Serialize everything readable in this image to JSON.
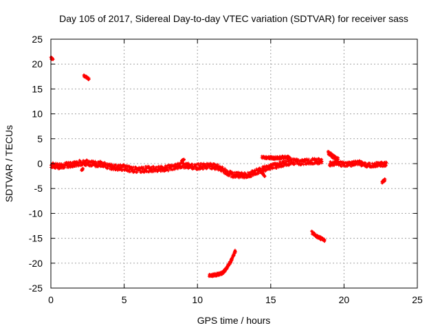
{
  "chart_data": {
    "type": "scatter",
    "title": "Day 105 of 2017, Sidereal Day-to-day VTEC variation (SDTVAR) for receiver sass",
    "xlabel": "GPS time / hours",
    "ylabel": "SDTVAR / TECUs",
    "xlim": [
      0,
      25
    ],
    "ylim": [
      -25,
      25
    ],
    "xticks": [
      0,
      5,
      10,
      15,
      20,
      25
    ],
    "yticks": [
      -25,
      -20,
      -15,
      -10,
      -5,
      0,
      5,
      10,
      15,
      20,
      25
    ],
    "grid": true,
    "point_color": "#ff0000",
    "series": [
      {
        "name": "main-band-1",
        "band": 1.2,
        "points": [
          [
            0,
            -0.3
          ],
          [
            0.5,
            -0.5
          ],
          [
            1,
            -0.3
          ],
          [
            1.5,
            -0.2
          ],
          [
            2,
            0.2
          ],
          [
            2.5,
            0.2
          ],
          [
            3,
            -0.1
          ],
          [
            3.5,
            -0.1
          ],
          [
            4,
            -0.6
          ],
          [
            4.5,
            -0.8
          ],
          [
            5,
            -0.8
          ],
          [
            5.5,
            -1.2
          ],
          [
            6,
            -1.3
          ],
          [
            6.5,
            -1.1
          ],
          [
            7,
            -1.1
          ],
          [
            7.5,
            -1.1
          ],
          [
            8,
            -0.9
          ],
          [
            8.5,
            -0.6
          ],
          [
            9,
            -0.3
          ],
          [
            9.5,
            -0.5
          ],
          [
            10,
            -0.6
          ],
          [
            10.5,
            -0.5
          ],
          [
            11,
            -0.5
          ],
          [
            11.5,
            -0.8
          ],
          [
            12,
            -1.8
          ],
          [
            12.5,
            -2.3
          ],
          [
            13,
            -2.3
          ],
          [
            13.5,
            -2.3
          ],
          [
            14,
            -1.6
          ],
          [
            14.5,
            -1.1
          ],
          [
            15,
            -0.6
          ],
          [
            15.5,
            -0.3
          ],
          [
            16,
            0.1
          ],
          [
            16.5,
            0.4
          ],
          [
            17,
            0.3
          ],
          [
            17.5,
            0.4
          ],
          [
            18,
            0.5
          ],
          [
            18.5,
            0.4
          ]
        ]
      },
      {
        "name": "main-band-2",
        "band": 1.0,
        "points": [
          [
            19,
            -0.1
          ],
          [
            19.5,
            0.2
          ],
          [
            20,
            -0.2
          ],
          [
            20.5,
            -0.1
          ],
          [
            21,
            0.2
          ],
          [
            21.5,
            -0.3
          ],
          [
            22,
            -0.2
          ],
          [
            22.5,
            -0.1
          ],
          [
            22.9,
            -0.1
          ]
        ]
      },
      {
        "name": "arc-upper-left-1",
        "band": 0.5,
        "points": [
          [
            0,
            21.2
          ],
          [
            0.15,
            21
          ]
        ]
      },
      {
        "name": "arc-upper-left-2",
        "band": 0.5,
        "points": [
          [
            2.25,
            17.7
          ],
          [
            2.6,
            17
          ]
        ]
      },
      {
        "name": "arc-low-1",
        "band": 0.6,
        "points": [
          [
            10.8,
            -22.5
          ],
          [
            11.3,
            -22.3
          ],
          [
            11.7,
            -22
          ],
          [
            12,
            -21
          ],
          [
            12.3,
            -19.5
          ],
          [
            12.6,
            -17.5
          ]
        ]
      },
      {
        "name": "arc-mid-1",
        "band": 0.6,
        "points": [
          [
            14.4,
            1.3
          ],
          [
            14.8,
            1.2
          ],
          [
            15.2,
            1.1
          ],
          [
            15.6,
            1.2
          ],
          [
            16,
            1.3
          ],
          [
            16.3,
            1.2
          ]
        ]
      },
      {
        "name": "arc-mid-2",
        "band": 0.6,
        "points": [
          [
            17.8,
            -13.8
          ],
          [
            18.1,
            -14.5
          ],
          [
            18.4,
            -15
          ],
          [
            18.7,
            -15.4
          ]
        ]
      },
      {
        "name": "arc-mid-3",
        "band": 0.8,
        "points": [
          [
            18.9,
            2.2
          ],
          [
            19.1,
            1.8
          ],
          [
            19.3,
            1.3
          ],
          [
            19.6,
            0.8
          ]
        ]
      },
      {
        "name": "arc-right-1",
        "band": 0.5,
        "points": [
          [
            22.6,
            -3.8
          ],
          [
            22.8,
            -3.2
          ]
        ]
      },
      {
        "name": "arc-scatter-1",
        "band": 0.4,
        "points": [
          [
            2.1,
            -1.3
          ],
          [
            2.2,
            -1.1
          ]
        ]
      },
      {
        "name": "arc-scatter-2",
        "band": 0.4,
        "points": [
          [
            8.9,
            0.5
          ],
          [
            9.1,
            0.8
          ]
        ]
      },
      {
        "name": "arc-scatter-3",
        "band": 0.4,
        "points": [
          [
            14.3,
            -1.5
          ],
          [
            14.6,
            -2.5
          ]
        ]
      }
    ]
  }
}
